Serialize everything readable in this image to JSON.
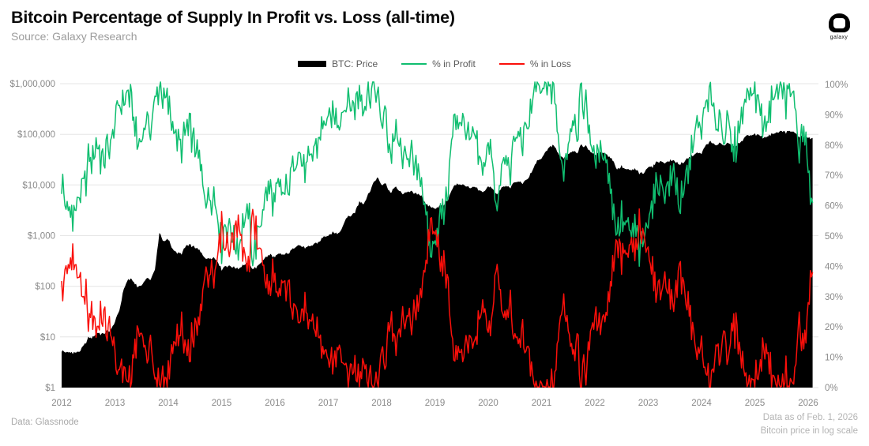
{
  "header": {
    "title": "Bitcoin Percentage of Supply In Profit vs. Loss (all-time)",
    "subtitle": "Source: Galaxy Research",
    "logo_label": "galaxy"
  },
  "legend": [
    {
      "label": "BTC: Price",
      "color": "#000000"
    },
    {
      "label": "% in Profit",
      "color": "#10be70"
    },
    {
      "label": "% in Loss",
      "color": "#fa0f0a"
    }
  ],
  "footer": {
    "left": "Data: Glassnode",
    "right_line1": "Data as of Feb. 1, 2026",
    "right_line2": "Bitcoin price in log scale"
  },
  "chart_data": {
    "type": "line",
    "title": "Bitcoin Percentage of Supply In Profit vs. Loss (all-time)",
    "sampling": "monthly",
    "x_start": "2012-01",
    "x_end": "2026-02",
    "x_axis": {
      "tick_labels": [
        "2012",
        "2013",
        "2014",
        "2015",
        "2016",
        "2017",
        "2018",
        "2019",
        "2020",
        "2021",
        "2022",
        "2023",
        "2024",
        "2025",
        "2026"
      ]
    },
    "y_left": {
      "scale": "log",
      "min": 1,
      "max": 1000000,
      "tick_labels": [
        "$1",
        "$10",
        "$100",
        "$1,000",
        "$10,000",
        "$100,000",
        "$1,000,000"
      ]
    },
    "y_right": {
      "min": 0,
      "max": 100,
      "tick_labels": [
        "0%",
        "10%",
        "20%",
        "30%",
        "40%",
        "50%",
        "60%",
        "70%",
        "80%",
        "90%",
        "100%"
      ]
    },
    "grid": "horizontal-log-decades",
    "legend_position": "top-center",
    "series": [
      {
        "name": "BTC: Price",
        "style": "area",
        "axis": "left",
        "color": "#000000",
        "values": [
          5.3,
          5.0,
          4.9,
          5.0,
          5.1,
          6.7,
          9.4,
          10.0,
          12.4,
          11.2,
          12.6,
          13.5,
          20,
          33,
          93,
          139,
          128,
          97,
          106,
          141,
          141,
          204,
          1130,
          757,
          853,
          550,
          454,
          446,
          627,
          635,
          589,
          506,
          388,
          338,
          378,
          320,
          217,
          254,
          244,
          236,
          230,
          263,
          284,
          230,
          236,
          314,
          377,
          430,
          368,
          437,
          416,
          448,
          531,
          672,
          624,
          575,
          610,
          700,
          745,
          963,
          970,
          1180,
          1080,
          1350,
          2300,
          2480,
          2875,
          4700,
          4360,
          6450,
          10100,
          14100,
          10200,
          10300,
          6930,
          9250,
          7500,
          6400,
          7750,
          7030,
          6630,
          6300,
          4020,
          3740,
          3460,
          3850,
          4100,
          5320,
          8560,
          10800,
          10000,
          9600,
          8300,
          9150,
          7560,
          7190,
          9350,
          8550,
          6440,
          8620,
          9450,
          9140,
          11350,
          11650,
          10780,
          13800,
          19700,
          29000,
          33100,
          45200,
          58800,
          57750,
          37300,
          35000,
          41600,
          47100,
          43800,
          61300,
          57000,
          46200,
          38500,
          43200,
          45500,
          37650,
          31800,
          19900,
          23300,
          20050,
          19400,
          20500,
          17150,
          16550,
          23100,
          23150,
          28500,
          29250,
          27200,
          30480,
          29230,
          25930,
          26970,
          34650,
          37700,
          42280,
          42580,
          61200,
          71300,
          60640,
          67500,
          62680,
          64620,
          58970,
          63330,
          70220,
          96450,
          93430,
          102400,
          96000,
          84000,
          95000,
          104000,
          107000,
          116000,
          110000,
          114000,
          108000,
          92000,
          88000,
          86000,
          82000
        ]
      },
      {
        "name": "% in Profit",
        "style": "line",
        "axis": "right",
        "color": "#10be70",
        "values": [
          68,
          60,
          57,
          60,
          63,
          66,
          74,
          77,
          82,
          74,
          78,
          80,
          88,
          93,
          97,
          98,
          90,
          80,
          83,
          88,
          87,
          93,
          99,
          96,
          94,
          88,
          82,
          80,
          85,
          84,
          80,
          74,
          66,
          60,
          65,
          58,
          47,
          54,
          51,
          49,
          48,
          54,
          58,
          45,
          48,
          58,
          64,
          67,
          60,
          66,
          63,
          66,
          71,
          80,
          76,
          72,
          75,
          79,
          81,
          87,
          88,
          92,
          87,
          91,
          96,
          95,
          92,
          98,
          94,
          97,
          99,
          97,
          88,
          89,
          76,
          84,
          79,
          73,
          79,
          74,
          72,
          70,
          55,
          44,
          50,
          55,
          58,
          67,
          84,
          90,
          87,
          85,
          79,
          83,
          73,
          71,
          80,
          76,
          57,
          70,
          75,
          73,
          82,
          84,
          80,
          88,
          95,
          98,
          97,
          98,
          99,
          97,
          76,
          73,
          82,
          89,
          85,
          97,
          92,
          83,
          73,
          78,
          80,
          72,
          61,
          50,
          56,
          53,
          50,
          53,
          45,
          47,
          56,
          62,
          66,
          68,
          64,
          68,
          70,
          61,
          63,
          72,
          80,
          86,
          86,
          93,
          97,
          87,
          90,
          84,
          86,
          77,
          82,
          88,
          98,
          96,
          99,
          93,
          85,
          91,
          97,
          97,
          99,
          95,
          97,
          94,
          80,
          84,
          72,
          58
        ]
      },
      {
        "name": "% in Loss",
        "style": "line",
        "axis": "right",
        "color": "#fa0f0a",
        "values": [
          31,
          39,
          42,
          39,
          36,
          33,
          25,
          22,
          17,
          25,
          21,
          19,
          11,
          6,
          3,
          2,
          9,
          19,
          16,
          11,
          12,
          6,
          1,
          3,
          5,
          11,
          17,
          19,
          14,
          15,
          19,
          25,
          33,
          39,
          34,
          41,
          52,
          45,
          48,
          50,
          51,
          45,
          41,
          54,
          51,
          41,
          35,
          32,
          39,
          33,
          36,
          33,
          28,
          19,
          23,
          27,
          24,
          20,
          18,
          12,
          11,
          7,
          12,
          8,
          3,
          4,
          7,
          2,
          5,
          2,
          1,
          2,
          11,
          10,
          23,
          15,
          20,
          26,
          20,
          25,
          27,
          29,
          44,
          55,
          49,
          44,
          41,
          32,
          15,
          9,
          12,
          14,
          20,
          16,
          26,
          28,
          19,
          23,
          42,
          29,
          24,
          26,
          17,
          15,
          19,
          11,
          4,
          2,
          2,
          1,
          1,
          2,
          23,
          26,
          17,
          10,
          14,
          3,
          7,
          16,
          26,
          21,
          19,
          27,
          38,
          49,
          43,
          46,
          49,
          46,
          54,
          52,
          43,
          37,
          33,
          31,
          35,
          31,
          29,
          38,
          36,
          27,
          19,
          13,
          13,
          6,
          2,
          12,
          9,
          15,
          13,
          22,
          17,
          11,
          1,
          3,
          1,
          6,
          14,
          8,
          2,
          2,
          1,
          4,
          2,
          5,
          19,
          15,
          27,
          41
        ]
      }
    ]
  }
}
